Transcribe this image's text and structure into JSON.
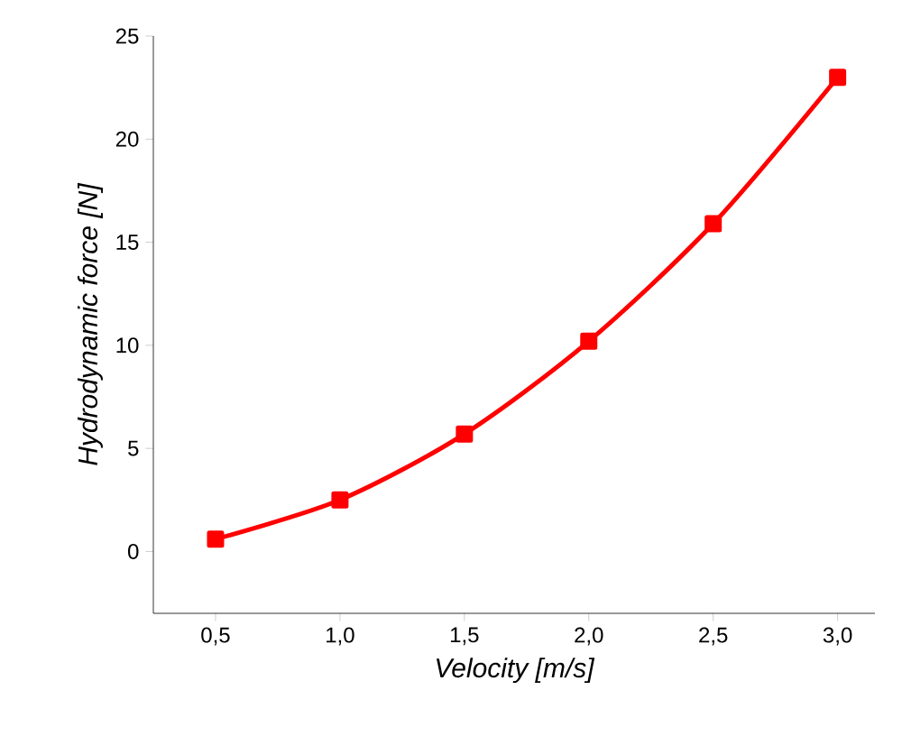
{
  "chart_data": {
    "type": "line",
    "xlabel": "Velocity [m/s]",
    "ylabel": "Hydrodynamic force [N]",
    "x": [
      0.5,
      1.0,
      1.5,
      2.0,
      2.5,
      3.0
    ],
    "series": [
      {
        "color": "#ff0000",
        "values": [
          0.6,
          2.5,
          5.7,
          10.2,
          15.9,
          23.0
        ]
      }
    ],
    "xlim": [
      0.25,
      3.15
    ],
    "ylim": [
      -3,
      25
    ],
    "xticks": [
      {
        "value": 0.5,
        "label": "0,5"
      },
      {
        "value": 1.0,
        "label": "1,0"
      },
      {
        "value": 1.5,
        "label": "1,5"
      },
      {
        "value": 2.0,
        "label": "2,0"
      },
      {
        "value": 2.5,
        "label": "2,5"
      },
      {
        "value": 3.0,
        "label": "3,0"
      }
    ],
    "yticks": [
      0,
      5,
      10,
      15,
      20,
      25
    ],
    "grid": false,
    "marker": "square",
    "line_style": "solid"
  }
}
